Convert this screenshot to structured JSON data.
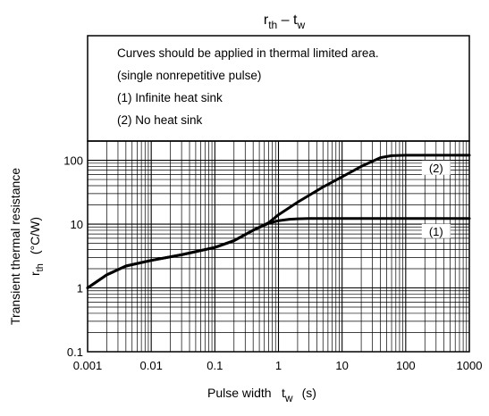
{
  "chart_data": {
    "type": "line",
    "title": {
      "main": "r",
      "main_sub": "th",
      "dash": " – ",
      "var": "t",
      "var_sub": "w"
    },
    "xlabel": {
      "text": "Pulse width",
      "symbol": "t",
      "symbol_sub": "w",
      "unit": "(s)"
    },
    "ylabel": {
      "text": "Transient thermal resistance",
      "symbol": "r",
      "symbol_sub": "th",
      "unit": "(°C/W)"
    },
    "x_scale": "log",
    "y_scale": "log",
    "xlim": [
      0.001,
      1000
    ],
    "ylim": [
      0.1,
      200
    ],
    "x_ticks": [
      "0.001",
      "0.01",
      "0.1",
      "1",
      "10",
      "100",
      "1000"
    ],
    "y_ticks": [
      "0.1",
      "1",
      "10",
      "100"
    ],
    "grid": true,
    "notes": [
      "Curves should be applied in thermal limited area.",
      "(single nonrepetitive pulse)",
      "(1)  Infinite heat sink",
      "(2)  No heat sink"
    ],
    "series": [
      {
        "name": "(1)",
        "x": [
          0.001,
          0.002,
          0.004,
          0.01,
          0.03,
          0.1,
          0.2,
          0.4,
          0.7,
          1,
          1.5,
          2,
          3,
          5,
          10,
          100,
          1000
        ],
        "y": [
          1.0,
          1.6,
          2.2,
          2.7,
          3.3,
          4.3,
          5.5,
          8.0,
          10.3,
          11.3,
          11.9,
          12.1,
          12.2,
          12.2,
          12.2,
          12.2,
          12.2
        ]
      },
      {
        "name": "(2)",
        "x": [
          0.001,
          0.002,
          0.004,
          0.01,
          0.03,
          0.1,
          0.2,
          0.4,
          0.7,
          1,
          2,
          5,
          10,
          20,
          40,
          60,
          100,
          1000
        ],
        "y": [
          1.0,
          1.6,
          2.2,
          2.7,
          3.3,
          4.3,
          5.5,
          8.0,
          10.5,
          14,
          22,
          38,
          55,
          80,
          110,
          118,
          120,
          120
        ]
      }
    ]
  }
}
